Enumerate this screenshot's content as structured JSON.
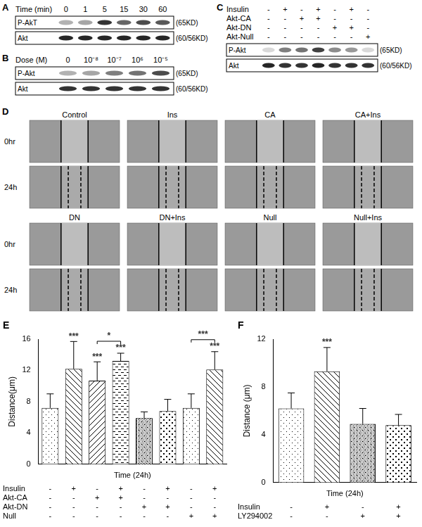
{
  "panels": [
    {
      "label": "A",
      "header": {
        "label": "Time (min)",
        "values": [
          "0",
          "1",
          "5",
          "15",
          "30",
          "60"
        ]
      },
      "rows": [
        {
          "name": "P-AkT",
          "size": "(65KD)",
          "intensity": [
            0.3,
            0.35,
            0.8,
            0.6,
            0.7,
            0.65
          ]
        },
        {
          "name": "Akt",
          "size": "(60/56KD)",
          "intensity": [
            0.85,
            0.85,
            0.85,
            0.85,
            0.85,
            0.85
          ]
        }
      ]
    },
    {
      "label": "B",
      "header": {
        "label": "Dose (M)",
        "values": [
          "0",
          "10⁻⁸",
          "10⁻⁷",
          "10⁶",
          "10⁻⁵"
        ]
      },
      "rows": [
        {
          "name": "P-Akt",
          "size": "(65KD)",
          "intensity": [
            0.3,
            0.35,
            0.5,
            0.55,
            0.7
          ]
        },
        {
          "name": "Akt",
          "size": "(60/56KD)",
          "intensity": [
            0.8,
            0.8,
            0.8,
            0.8,
            0.8
          ]
        }
      ]
    },
    {
      "label": "C",
      "conditions": [
        {
          "label": "Insulin",
          "values": [
            "-",
            "+",
            "-",
            "+",
            "-",
            "+",
            "-"
          ]
        },
        {
          "label": "Akt-CA",
          "values": [
            "-",
            "-",
            "+",
            "+",
            "-",
            "-",
            "-"
          ]
        },
        {
          "label": "Akt-DN",
          "values": [
            "-",
            "-",
            "-",
            "-",
            "+",
            "+",
            "-"
          ]
        },
        {
          "label": "Akt-Null",
          "values": [
            "-",
            "-",
            "-",
            "-",
            "-",
            "-",
            "+"
          ]
        }
      ],
      "rows": [
        {
          "name": "P-Akt",
          "size": "(65KD)",
          "intensity": [
            0.15,
            0.5,
            0.55,
            0.75,
            0.45,
            0.4,
            0.15
          ]
        },
        {
          "name": "Akt",
          "size": "(60/56KD)",
          "intensity": [
            0.85,
            0.8,
            0.8,
            0.85,
            0.8,
            0.8,
            0.8
          ]
        }
      ]
    },
    {
      "label": "D",
      "columns": [
        "Control",
        "Ins",
        "CA",
        "CA+Ins",
        "DN",
        "DN+Ins",
        "Null",
        "Null+Ins"
      ],
      "times": [
        "0hr",
        "24h"
      ]
    }
  ],
  "chart_data": [
    {
      "type": "bar",
      "label": "E",
      "x_label": "Time (24h)",
      "y_label": "Distance(μm)",
      "categories": [
        null,
        null,
        null,
        null,
        null,
        null,
        null,
        null
      ],
      "values": [
        7.2,
        12.2,
        10.7,
        13.2,
        5.9,
        6.8,
        7.2,
        12.1
      ],
      "errors": [
        1.8,
        3.5,
        2.4,
        1.0,
        0.8,
        1.5,
        1.8,
        2.3
      ],
      "color": "#000000",
      "ylim": [
        0,
        16
      ],
      "yticks": [
        0,
        4,
        8,
        12,
        16
      ],
      "grid": false,
      "tick_labels": "y",
      "annotations": [
        {
          "index": 1,
          "text": "***"
        },
        {
          "index": 2,
          "text": "***"
        },
        {
          "index": 3,
          "text": "***"
        },
        {
          "index": 7,
          "text": "***"
        }
      ],
      "brackets": [
        {
          "from": 2,
          "to": 3,
          "text": "*"
        },
        {
          "from": 6,
          "to": 7,
          "text": "***"
        }
      ],
      "conditions": [
        {
          "label": "Insulin",
          "values": [
            "-",
            "+",
            "-",
            "+",
            "-",
            "+",
            "-",
            "+"
          ]
        },
        {
          "label": "Akt-CA",
          "values": [
            "-",
            "-",
            "+",
            "+",
            "-",
            "-",
            "-",
            "-"
          ]
        },
        {
          "label": "Akt-DN",
          "values": [
            "-",
            "-",
            "-",
            "-",
            "+",
            "+",
            "-",
            "-"
          ]
        },
        {
          "label": "Null",
          "values": [
            "-",
            "-",
            "-",
            "-",
            "-",
            "-",
            "+",
            "+"
          ]
        }
      ]
    },
    {
      "type": "bar",
      "label": "F",
      "x_label": "Time (24h)",
      "y_label": "Distance (μm)",
      "categories": [
        null,
        null,
        null,
        null
      ],
      "values": [
        6.2,
        9.3,
        4.9,
        4.8
      ],
      "errors": [
        1.3,
        2.0,
        1.3,
        0.9
      ],
      "color": "#000000",
      "ylim": [
        0,
        12
      ],
      "yticks": [
        0,
        4,
        8,
        12
      ],
      "grid": false,
      "tick_labels": "y",
      "annotations": [
        {
          "index": 1,
          "text": "***"
        }
      ],
      "brackets": [],
      "conditions": [
        {
          "label": "Insulin",
          "values": [
            "-",
            "+",
            "-",
            "+"
          ]
        },
        {
          "label": "LY294002",
          "values": [
            "-",
            "-",
            "+",
            "+"
          ]
        }
      ]
    }
  ]
}
